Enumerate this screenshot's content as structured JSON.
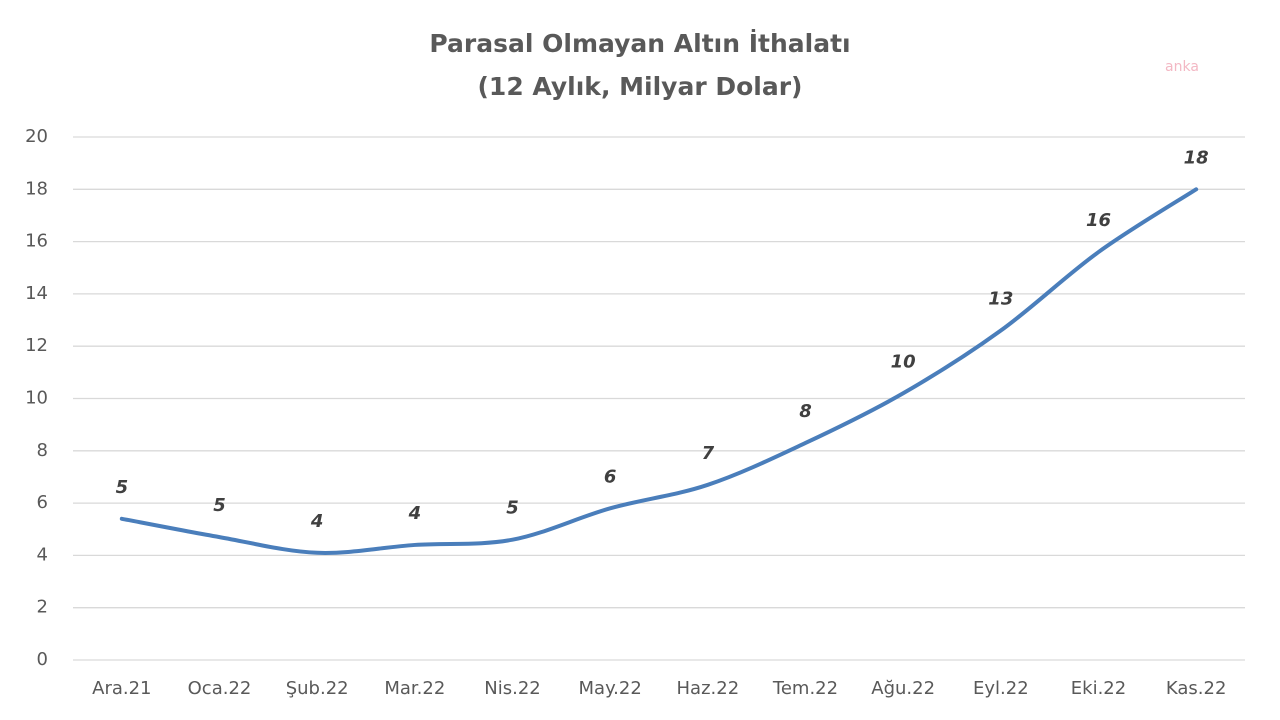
{
  "chart_data": {
    "type": "line",
    "title": [
      "Parasal Olmayan Altın İthalatı",
      "(12 Aylık, Milyar Dolar)"
    ],
    "watermark": "anka",
    "categories": [
      "Ara.21",
      "Oca.22",
      "Şub.22",
      "Mar.22",
      "Nis.22",
      "May.22",
      "Haz.22",
      "Tem.22",
      "Ağu.22",
      "Eyl.22",
      "Eki.22",
      "Kas.22"
    ],
    "values": [
      5.4,
      4.7,
      4.1,
      4.4,
      4.6,
      5.8,
      6.7,
      8.3,
      10.2,
      12.6,
      15.6,
      18.0
    ],
    "value_labels": [
      "5",
      "5",
      "4",
      "4",
      "5",
      "6",
      "7",
      "8",
      "10",
      "13",
      "16",
      "18"
    ],
    "color": "#4a7ebb",
    "ylim": [
      0,
      20
    ],
    "yticks": [
      0,
      2,
      4,
      6,
      8,
      10,
      12,
      14,
      16,
      18,
      20
    ],
    "grid": true
  }
}
